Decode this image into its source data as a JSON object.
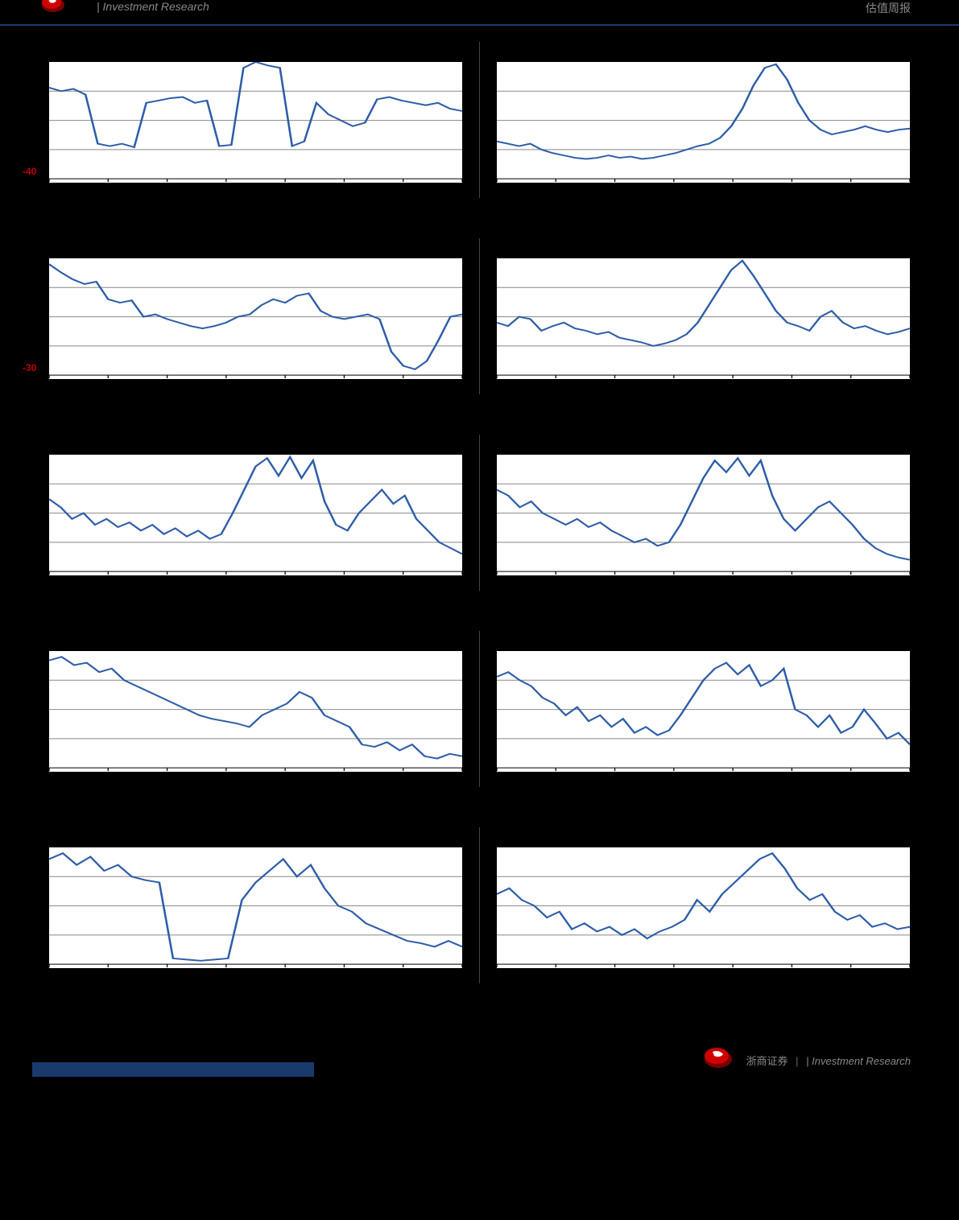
{
  "header": {
    "left_text": "| Investment Research",
    "right_text": "估值周报"
  },
  "footer": {
    "brand_text": "浙商证券",
    "suffix_text": "| Investment Research"
  },
  "page_indicator": "",
  "chart_common": {
    "background": "#ffffff",
    "line_color": "#2e5da8",
    "grid_color": "#888888",
    "neg_label_color": "#c00000",
    "line_width": 2,
    "n_xticks": 8,
    "n_gridlines": 3
  },
  "charts": [
    {
      "row": 0,
      "col": 0,
      "neg_y_label": "-40",
      "neg_y_pos": 0.92,
      "series": [
        0.22,
        0.25,
        0.23,
        0.28,
        0.7,
        0.72,
        0.7,
        0.73,
        0.35,
        0.33,
        0.31,
        0.3,
        0.35,
        0.33,
        0.72,
        0.71,
        0.05,
        0.0,
        0.03,
        0.05,
        0.72,
        0.68,
        0.35,
        0.45,
        0.5,
        0.55,
        0.52,
        0.32,
        0.3,
        0.33,
        0.35,
        0.37,
        0.35,
        0.4,
        0.42
      ]
    },
    {
      "row": 0,
      "col": 1,
      "series": [
        0.68,
        0.7,
        0.72,
        0.7,
        0.75,
        0.78,
        0.8,
        0.82,
        0.83,
        0.82,
        0.8,
        0.82,
        0.81,
        0.83,
        0.82,
        0.8,
        0.78,
        0.75,
        0.72,
        0.7,
        0.65,
        0.55,
        0.4,
        0.2,
        0.05,
        0.02,
        0.15,
        0.35,
        0.5,
        0.58,
        0.62,
        0.6,
        0.58,
        0.55,
        0.58,
        0.6,
        0.58,
        0.57
      ]
    },
    {
      "row": 1,
      "col": 0,
      "neg_y_label": "-30",
      "neg_y_pos": 0.92,
      "series": [
        0.05,
        0.12,
        0.18,
        0.22,
        0.2,
        0.35,
        0.38,
        0.36,
        0.5,
        0.48,
        0.52,
        0.55,
        0.58,
        0.6,
        0.58,
        0.55,
        0.5,
        0.48,
        0.4,
        0.35,
        0.38,
        0.32,
        0.3,
        0.45,
        0.5,
        0.52,
        0.5,
        0.48,
        0.52,
        0.8,
        0.92,
        0.95,
        0.88,
        0.7,
        0.5,
        0.48
      ]
    },
    {
      "row": 1,
      "col": 1,
      "series": [
        0.55,
        0.58,
        0.5,
        0.52,
        0.62,
        0.58,
        0.55,
        0.6,
        0.62,
        0.65,
        0.63,
        0.68,
        0.7,
        0.72,
        0.75,
        0.73,
        0.7,
        0.65,
        0.55,
        0.4,
        0.25,
        0.1,
        0.02,
        0.15,
        0.3,
        0.45,
        0.55,
        0.58,
        0.62,
        0.5,
        0.45,
        0.55,
        0.6,
        0.58,
        0.62,
        0.65,
        0.63,
        0.6
      ]
    },
    {
      "row": 2,
      "col": 0,
      "series": [
        0.38,
        0.45,
        0.55,
        0.5,
        0.6,
        0.55,
        0.62,
        0.58,
        0.65,
        0.6,
        0.68,
        0.63,
        0.7,
        0.65,
        0.72,
        0.68,
        0.5,
        0.3,
        0.1,
        0.03,
        0.18,
        0.02,
        0.2,
        0.05,
        0.4,
        0.6,
        0.65,
        0.5,
        0.4,
        0.3,
        0.42,
        0.35,
        0.55,
        0.65,
        0.75,
        0.8,
        0.85
      ]
    },
    {
      "row": 2,
      "col": 1,
      "series": [
        0.3,
        0.35,
        0.45,
        0.4,
        0.5,
        0.55,
        0.6,
        0.55,
        0.62,
        0.58,
        0.65,
        0.7,
        0.75,
        0.72,
        0.78,
        0.75,
        0.6,
        0.4,
        0.2,
        0.05,
        0.15,
        0.03,
        0.18,
        0.05,
        0.35,
        0.55,
        0.65,
        0.55,
        0.45,
        0.4,
        0.5,
        0.6,
        0.72,
        0.8,
        0.85,
        0.88,
        0.9
      ]
    },
    {
      "row": 3,
      "col": 0,
      "series": [
        0.08,
        0.05,
        0.12,
        0.1,
        0.18,
        0.15,
        0.25,
        0.3,
        0.35,
        0.4,
        0.45,
        0.5,
        0.55,
        0.58,
        0.6,
        0.62,
        0.65,
        0.55,
        0.5,
        0.45,
        0.35,
        0.4,
        0.55,
        0.6,
        0.65,
        0.8,
        0.82,
        0.78,
        0.85,
        0.8,
        0.9,
        0.92,
        0.88,
        0.9
      ]
    },
    {
      "row": 3,
      "col": 1,
      "series": [
        0.22,
        0.18,
        0.25,
        0.3,
        0.4,
        0.45,
        0.55,
        0.48,
        0.6,
        0.55,
        0.65,
        0.58,
        0.7,
        0.65,
        0.72,
        0.68,
        0.55,
        0.4,
        0.25,
        0.15,
        0.1,
        0.2,
        0.12,
        0.3,
        0.25,
        0.15,
        0.5,
        0.55,
        0.65,
        0.55,
        0.7,
        0.65,
        0.5,
        0.62,
        0.75,
        0.7,
        0.8
      ]
    },
    {
      "row": 4,
      "col": 0,
      "series": [
        0.1,
        0.05,
        0.15,
        0.08,
        0.2,
        0.15,
        0.25,
        0.28,
        0.3,
        0.95,
        0.96,
        0.97,
        0.96,
        0.95,
        0.45,
        0.3,
        0.2,
        0.1,
        0.25,
        0.15,
        0.35,
        0.5,
        0.55,
        0.65,
        0.7,
        0.75,
        0.8,
        0.82,
        0.85,
        0.8,
        0.85
      ]
    },
    {
      "row": 4,
      "col": 1,
      "series": [
        0.4,
        0.35,
        0.45,
        0.5,
        0.6,
        0.55,
        0.7,
        0.65,
        0.72,
        0.68,
        0.75,
        0.7,
        0.78,
        0.72,
        0.68,
        0.62,
        0.45,
        0.55,
        0.4,
        0.3,
        0.2,
        0.1,
        0.05,
        0.18,
        0.35,
        0.45,
        0.4,
        0.55,
        0.62,
        0.58,
        0.68,
        0.65,
        0.7,
        0.68
      ]
    }
  ]
}
